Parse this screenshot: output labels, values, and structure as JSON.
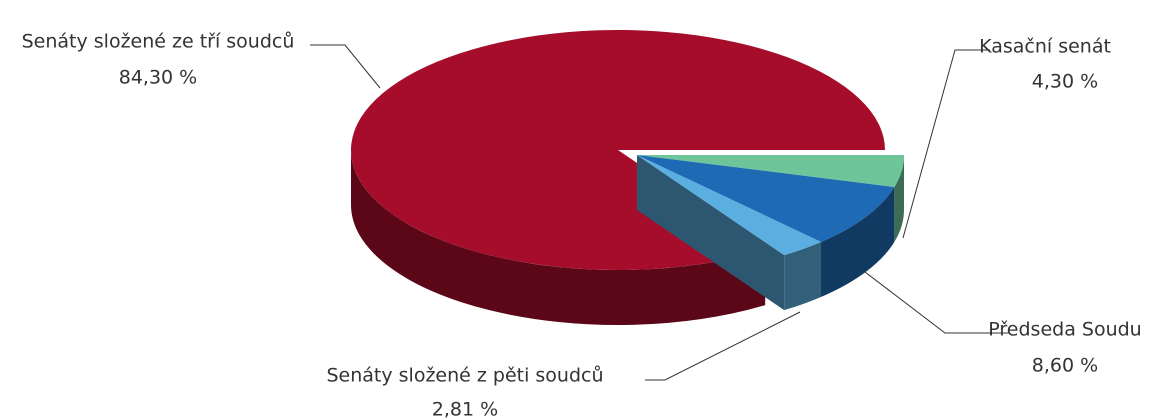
{
  "chart_data": {
    "type": "pie3d",
    "categories": [
      "Senáty složené ze tří soudců",
      "Kasační senát",
      "Předseda Soudu",
      "Senáty složené z pěti soudců"
    ],
    "values": [
      84.3,
      4.3,
      8.6,
      2.81
    ],
    "value_labels": [
      "84,30 %",
      "4,30 %",
      "8,60 %",
      "2,81 %"
    ],
    "colors": [
      "#a50d2a",
      "#6fc59a",
      "#1f6ab4",
      "#5aaee0"
    ]
  }
}
